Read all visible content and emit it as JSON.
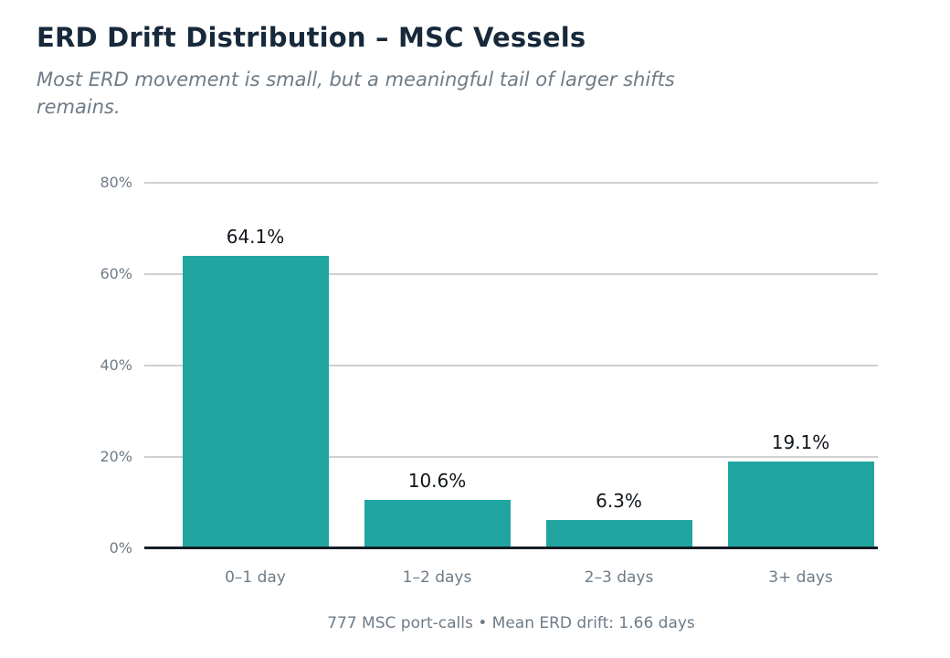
{
  "colors": {
    "bar": "#21a5a1",
    "title": "#17293a",
    "muted": "#6e7b87",
    "gridline": "#d0d0d0",
    "baseline": "#151e26",
    "value_label": "#10161b"
  },
  "chart_data": {
    "type": "bar",
    "title": "ERD Drift Distribution – MSC Vessels",
    "subtitle": "Most ERD movement is small, but a meaningful tail of larger shifts remains.",
    "categories": [
      "0–1 day",
      "1–2 days",
      "2–3 days",
      "3+ days"
    ],
    "values": [
      64.1,
      10.6,
      6.3,
      19.1
    ],
    "value_labels": [
      "64.1%",
      "10.6%",
      "6.3%",
      "19.1%"
    ],
    "xlabel": "",
    "ylabel": "",
    "ylim": [
      0,
      80
    ],
    "yticks": [
      0,
      20,
      40,
      60,
      80
    ],
    "ytick_labels": [
      "0%",
      "20%",
      "40%",
      "60%",
      "80%"
    ],
    "grid": "horizontal",
    "legend": "none",
    "footnote": "777 MSC port-calls • Mean ERD drift: 1.66 days"
  }
}
